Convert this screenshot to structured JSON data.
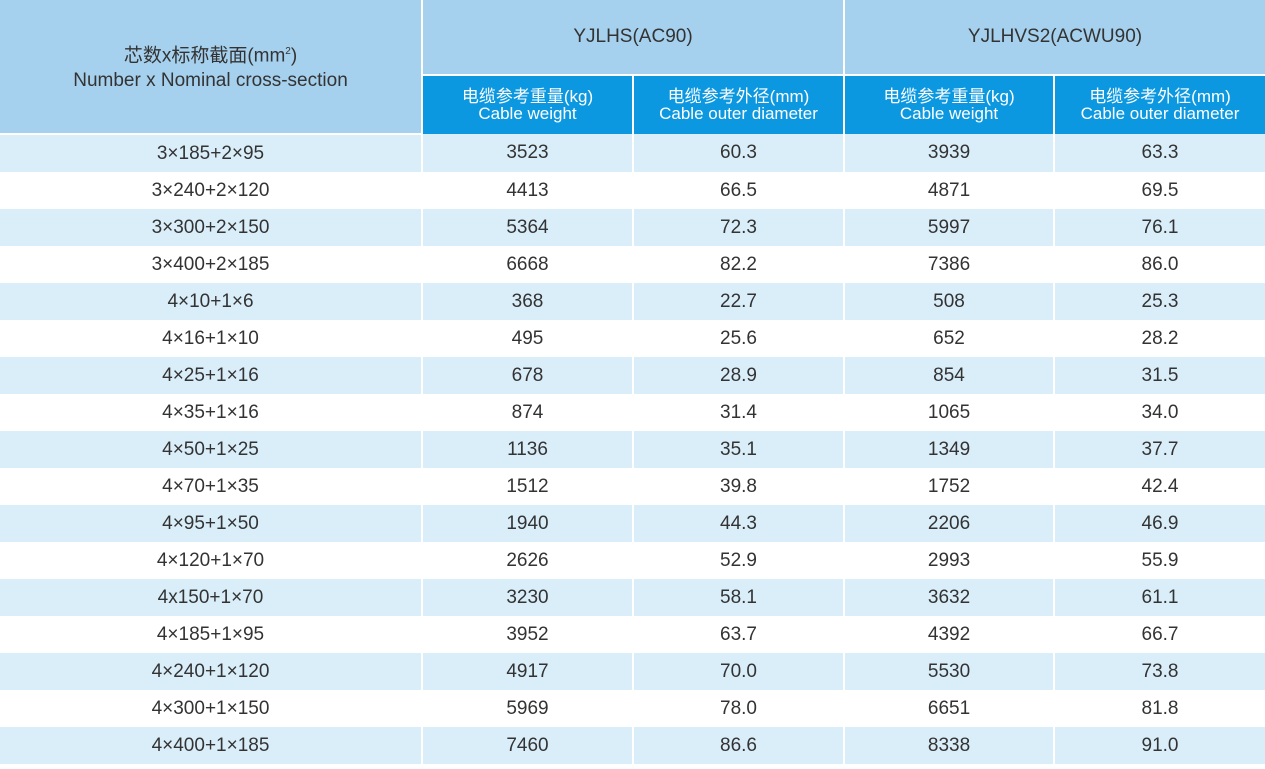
{
  "header": {
    "spec_zh": "芯数x标称截面(mm",
    "spec_sup": "2",
    "spec_close": ")",
    "spec_en": "Number x Nominal cross-section",
    "group1": "YJLHS(AC90)",
    "group2": "YJLHVS2(ACWU90)",
    "weight_zh": "电缆参考重量(kg)",
    "weight_en": "Cable weight",
    "diameter_zh": "电缆参考外径(mm)",
    "diameter_en": "Cable outer diameter"
  },
  "rows": [
    [
      "3×185+2×95",
      "3523",
      "60.3",
      "3939",
      "63.3"
    ],
    [
      "3×240+2×120",
      "4413",
      "66.5",
      "4871",
      "69.5"
    ],
    [
      "3×300+2×150",
      "5364",
      "72.3",
      "5997",
      "76.1"
    ],
    [
      "3×400+2×185",
      "6668",
      "82.2",
      "7386",
      "86.0"
    ],
    [
      "4×10+1×6",
      "368",
      "22.7",
      "508",
      "25.3"
    ],
    [
      "4×16+1×10",
      "495",
      "25.6",
      "652",
      "28.2"
    ],
    [
      "4×25+1×16",
      "678",
      "28.9",
      "854",
      "31.5"
    ],
    [
      "4×35+1×16",
      "874",
      "31.4",
      "1065",
      "34.0"
    ],
    [
      "4×50+1×25",
      "1136",
      "35.1",
      "1349",
      "37.7"
    ],
    [
      "4×70+1×35",
      "1512",
      "39.8",
      "1752",
      "42.4"
    ],
    [
      "4×95+1×50",
      "1940",
      "44.3",
      "2206",
      "46.9"
    ],
    [
      "4×120+1×70",
      "2626",
      "52.9",
      "2993",
      "55.9"
    ],
    [
      "4x150+1×70",
      "3230",
      "58.1",
      "3632",
      "61.1"
    ],
    [
      "4×185+1×95",
      "3952",
      "63.7",
      "4392",
      "66.7"
    ],
    [
      "4×240+1×120",
      "4917",
      "70.0",
      "5530",
      "73.8"
    ],
    [
      "4×300+1×150",
      "5969",
      "78.0",
      "6651",
      "81.8"
    ],
    [
      "4×400+1×185",
      "7460",
      "86.6",
      "8338",
      "91.0"
    ]
  ]
}
